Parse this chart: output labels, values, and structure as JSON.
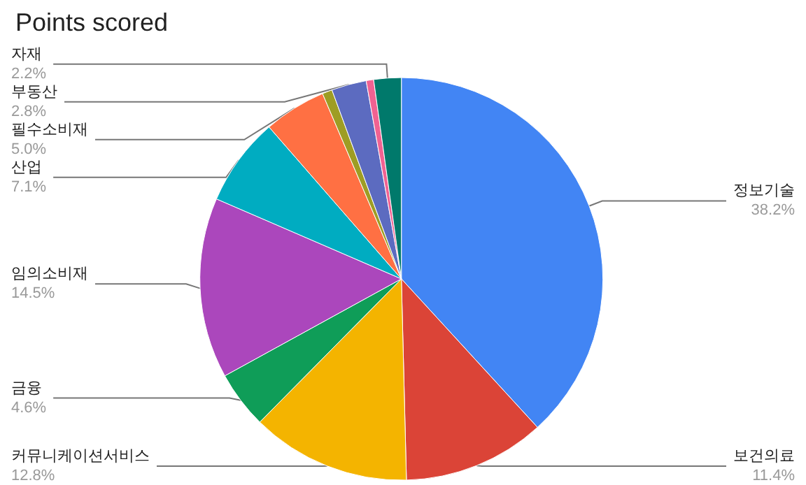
{
  "chart_data": {
    "type": "pie",
    "title": "Points scored",
    "categories": [
      "정보기술",
      "보건의료",
      "커뮤니케이션서비스",
      "금융",
      "임의소비재",
      "산업",
      "필수소비재",
      null,
      "부동산",
      null,
      "자재"
    ],
    "values": [
      38.2,
      11.4,
      12.8,
      4.6,
      14.5,
      7.1,
      5.0,
      0.8,
      2.8,
      0.6,
      2.2
    ],
    "value_labels": [
      "38.2%",
      "11.4%",
      "12.8%",
      "4.6%",
      "14.5%",
      "7.1%",
      "5.0%",
      null,
      "2.8%",
      null,
      "2.2%"
    ],
    "colors": [
      "#4285f4",
      "#db4437",
      "#f4b400",
      "#0f9d58",
      "#ab47bc",
      "#00acc1",
      "#ff7043",
      "#9e9d24",
      "#5c6bc0",
      "#f06292",
      "#00796b"
    ],
    "legend": false
  }
}
